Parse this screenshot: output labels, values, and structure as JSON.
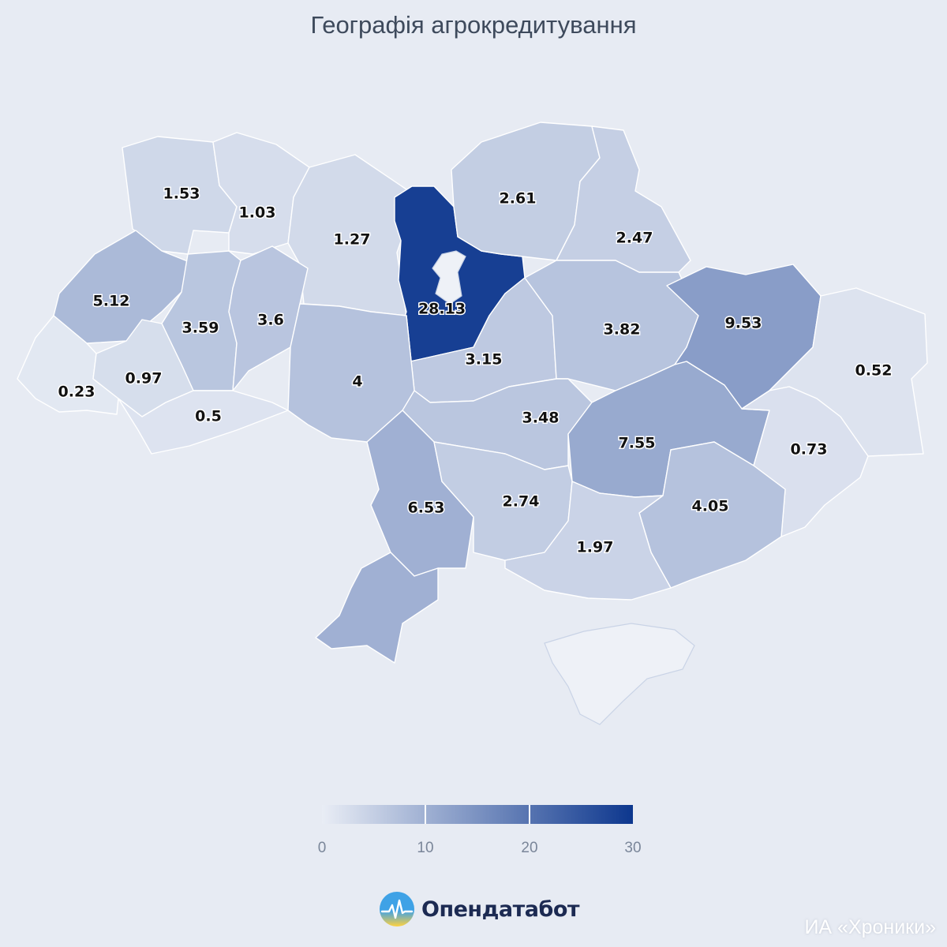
{
  "title": "Географія агрокредитування",
  "colors": {
    "background": "#e7ebf3",
    "scale_low": "#e9edf5",
    "scale_high": "#0d378e",
    "logo_dark": "#1c2a52",
    "logo_yellow": "#ffd23f",
    "logo_blue": "#3fa2e6"
  },
  "chart_data": {
    "type": "choropleth",
    "title": "Географія агрокредитування",
    "color_range": [
      0,
      30
    ],
    "regions": [
      {
        "value": 1.53
      },
      {
        "value": 1.03
      },
      {
        "value": 1.27
      },
      {
        "value": 28.13
      },
      {
        "value": 2.61
      },
      {
        "value": 2.47
      },
      {
        "value": 5.12
      },
      {
        "value": 3.59
      },
      {
        "value": 3.6
      },
      {
        "value": 3.15
      },
      {
        "value": 3.82
      },
      {
        "value": 9.53
      },
      {
        "value": 0.52
      },
      {
        "value": 0.23
      },
      {
        "value": 0.97
      },
      {
        "value": 0.5
      },
      {
        "value": 4
      },
      {
        "value": 3.48
      },
      {
        "value": 7.55
      },
      {
        "value": 0.73
      },
      {
        "value": 6.53
      },
      {
        "value": 2.74
      },
      {
        "value": 4.05
      },
      {
        "value": 1.97
      },
      {
        "value": 6.53
      }
    ]
  },
  "legend": {
    "ticks": [
      "0",
      "10",
      "20",
      "30"
    ]
  },
  "logo": {
    "text": "Опендатабот",
    "icon": "opendatabot-logo-icon"
  },
  "watermark": "ИА «Хроники»"
}
